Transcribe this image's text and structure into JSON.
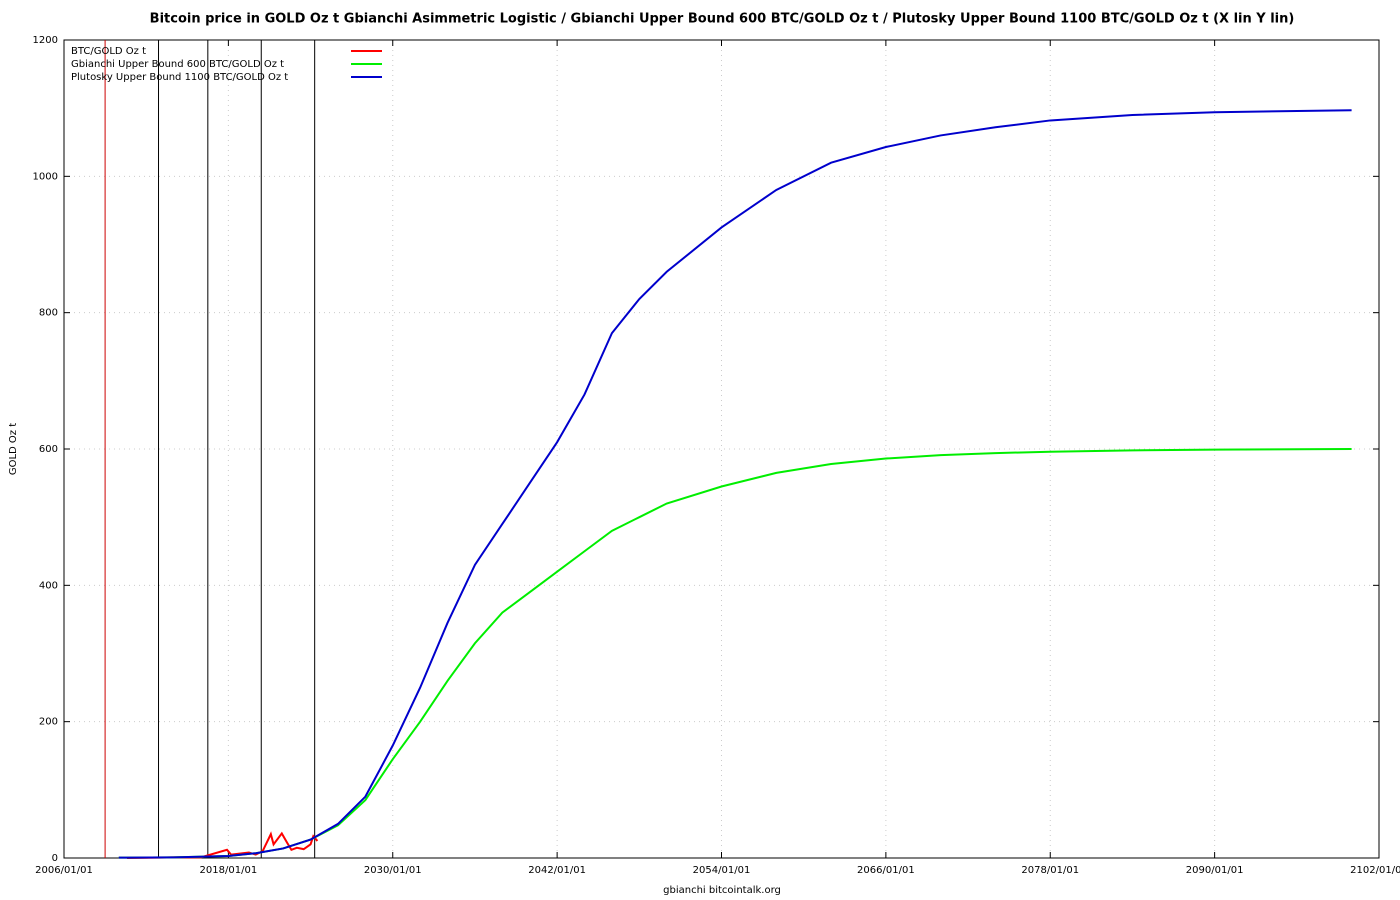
{
  "chart_data": {
    "type": "line",
    "title": "Bitcoin price in GOLD Oz t Gbianchi Asimmetric Logistic / Gbianchi Upper Bound 600  BTC/GOLD Oz t / Plutosky Upper Bound 1100  BTC/GOLD Oz t  (X lin Y lin)",
    "x_label": "gbianchi bitcointalk.org",
    "y_label": "GOLD Oz t",
    "xlim": [
      2006,
      2102
    ],
    "xticks": [
      {
        "value": 2006,
        "label": "2006/01/01"
      },
      {
        "value": 2018,
        "label": "2018/01/01"
      },
      {
        "value": 2030,
        "label": "2030/01/01"
      },
      {
        "value": 2042,
        "label": "2042/01/01"
      },
      {
        "value": 2054,
        "label": "2054/01/01"
      },
      {
        "value": 2066,
        "label": "2066/01/01"
      },
      {
        "value": 2078,
        "label": "2078/01/01"
      },
      {
        "value": 2090,
        "label": "2090/01/01"
      },
      {
        "value": 2102,
        "label": "2102/01/01"
      }
    ],
    "ylim": [
      0,
      1200
    ],
    "yticks": [
      0,
      200,
      400,
      600,
      800,
      1000,
      1200
    ],
    "grid": true,
    "legend": "top-left",
    "vlines": [
      {
        "x": 2009.0,
        "color": "#cc0000"
      },
      {
        "x": 2012.9,
        "color": "#000000"
      },
      {
        "x": 2016.5,
        "color": "#000000"
      },
      {
        "x": 2020.4,
        "color": "#000000"
      },
      {
        "x": 2024.3,
        "color": "#000000"
      }
    ],
    "series": [
      {
        "name": "BTC/GOLD Oz t",
        "color": "#ff0000",
        "x": [
          2010.6,
          2013,
          2014,
          2016,
          2017.9,
          2018.2,
          2019.5,
          2020,
          2020.5,
          2021.1,
          2021.3,
          2021.9,
          2022.3,
          2022.6,
          2023,
          2023.5,
          2024,
          2024.2,
          2024.5
        ],
        "values": [
          0,
          0.5,
          1,
          1,
          12,
          5,
          8,
          5,
          10,
          35,
          20,
          36,
          22,
          12,
          15,
          13,
          20,
          32,
          25
        ]
      },
      {
        "name": "Gbianchi Upper Bound 600  BTC/GOLD Oz t",
        "color": "#00ee00",
        "x": [
          2010,
          2014,
          2018,
          2020,
          2022,
          2024,
          2026,
          2028,
          2030,
          2032,
          2034,
          2036,
          2038,
          2040,
          2042,
          2044,
          2046,
          2048,
          2050,
          2054,
          2058,
          2062,
          2066,
          2070,
          2074,
          2078,
          2084,
          2090,
          2100
        ],
        "values": [
          0.5,
          1,
          3,
          7,
          14,
          27,
          48,
          85,
          145,
          200,
          260,
          315,
          360,
          390,
          420,
          450,
          480,
          500,
          520,
          545,
          565,
          578,
          586,
          591,
          594,
          596,
          598,
          599,
          600
        ]
      },
      {
        "name": "Plutosky Upper Bound 1100  BTC/GOLD Oz t",
        "color": "#0000cc",
        "x": [
          2010,
          2014,
          2018,
          2020,
          2022,
          2024,
          2026,
          2028,
          2030,
          2032,
          2034,
          2036,
          2038,
          2040,
          2042,
          2044,
          2046,
          2048,
          2050,
          2054,
          2058,
          2062,
          2066,
          2070,
          2074,
          2078,
          2084,
          2090,
          2100
        ],
        "values": [
          0.5,
          1,
          3,
          7,
          14,
          27,
          50,
          90,
          165,
          250,
          345,
          430,
          490,
          550,
          610,
          680,
          770,
          820,
          860,
          925,
          980,
          1020,
          1043,
          1060,
          1072,
          1082,
          1090,
          1094,
          1097
        ]
      }
    ]
  }
}
